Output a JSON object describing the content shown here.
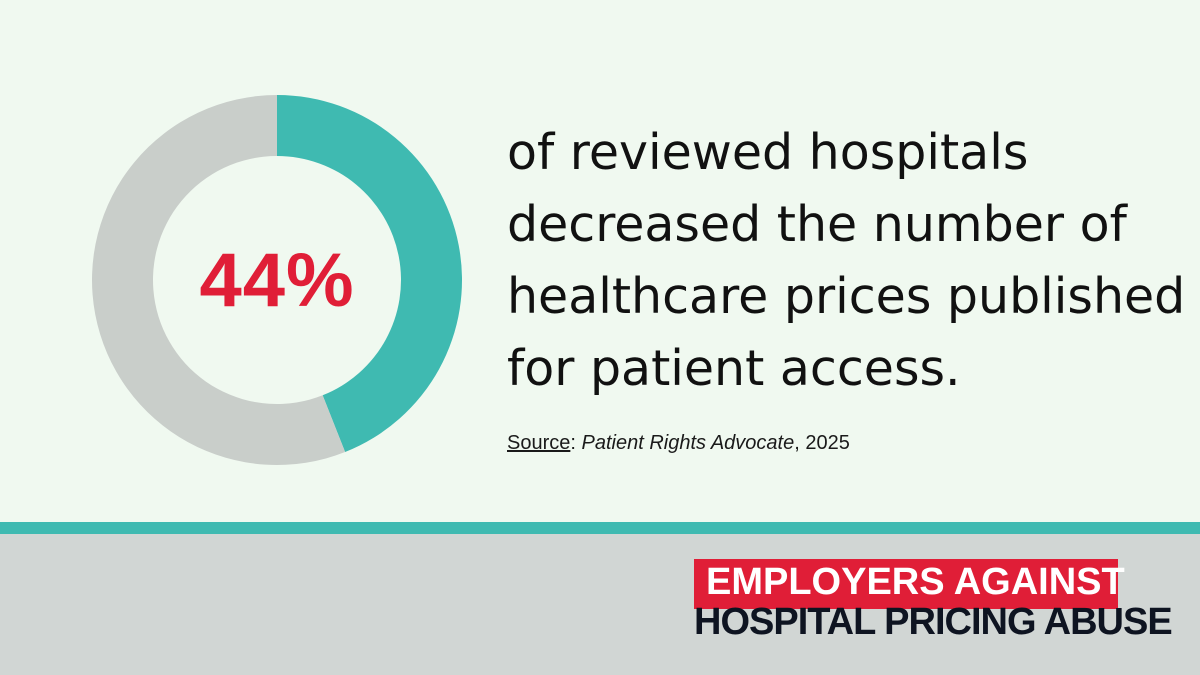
{
  "chart_data": {
    "type": "pie",
    "donut": true,
    "values": [
      44,
      56
    ],
    "colors": [
      "#3fbab1",
      "#c9ceca"
    ],
    "center_label": "44%"
  },
  "statement": {
    "lines": [
      "of reviewed hospitals",
      "decreased the number of",
      "healthcare prices published",
      "for patient access."
    ]
  },
  "source": {
    "label": "Source",
    "separator": ": ",
    "publisher": "Patient Rights Advocate",
    "year_suffix": ", 2025"
  },
  "logo": {
    "line1": "EMPLOYERS AGAINST",
    "line2": "HOSPITAL PRICING ABUSE"
  },
  "colors": {
    "accent": "#3fbab1",
    "highlight": "#e01e37",
    "background": "#f0f9f0",
    "footer": "#d1d6d4"
  }
}
